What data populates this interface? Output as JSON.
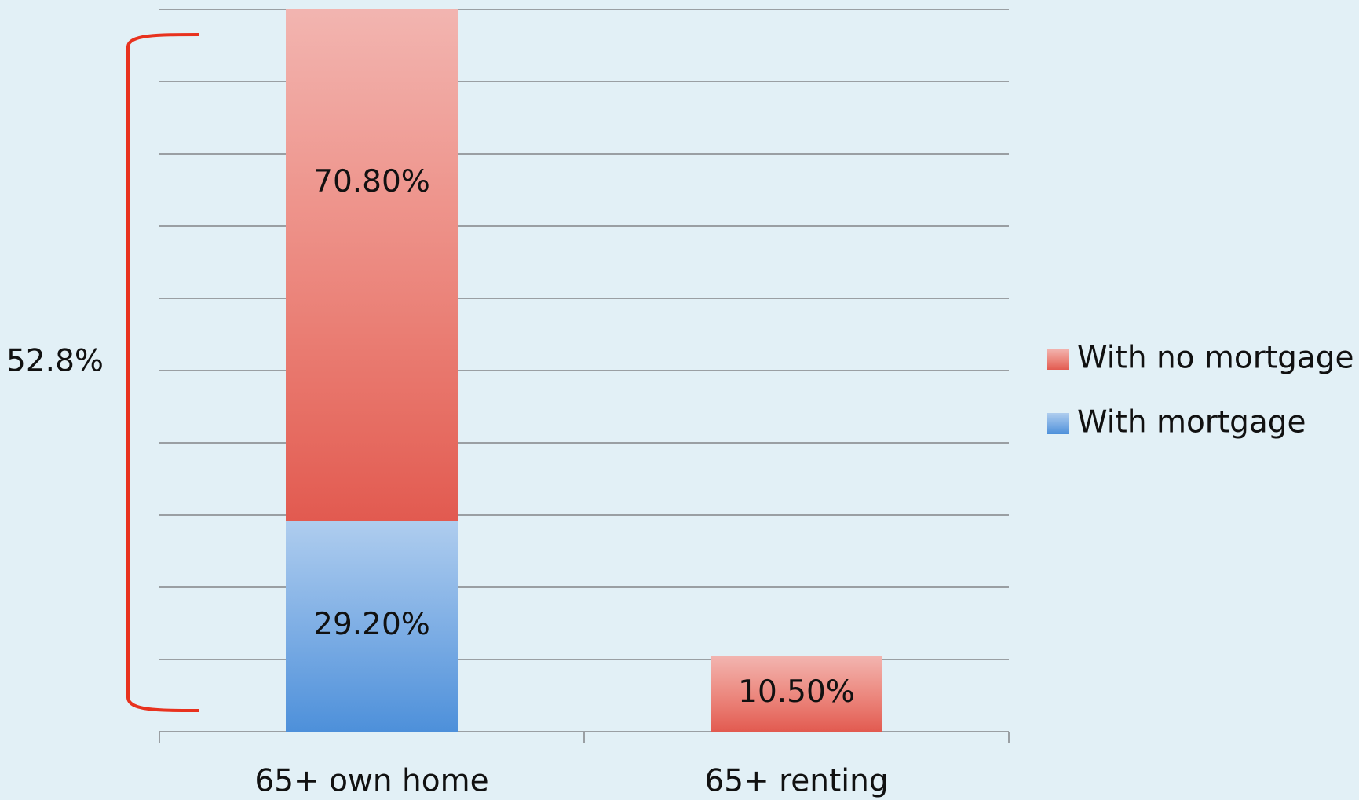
{
  "chart_data": {
    "type": "stacked_bar",
    "categories": [
      "65+ own home",
      "65+ renting"
    ],
    "series": [
      {
        "name": "With no mortgage",
        "color": "#e25a50",
        "values": [
          70.8,
          10.5
        ],
        "value_labels": [
          "70.80%",
          "10.50%"
        ]
      },
      {
        "name": "With mortgage",
        "color": "#4d90da",
        "values": [
          29.2,
          null
        ],
        "value_labels": [
          "29.20%",
          null
        ]
      }
    ],
    "ylim": [
      0,
      100
    ],
    "yticks": [
      0,
      10,
      20,
      30,
      40,
      50,
      60,
      70,
      80,
      90,
      100
    ],
    "grid": true,
    "annotation": "52.8%",
    "legend": "right"
  }
}
